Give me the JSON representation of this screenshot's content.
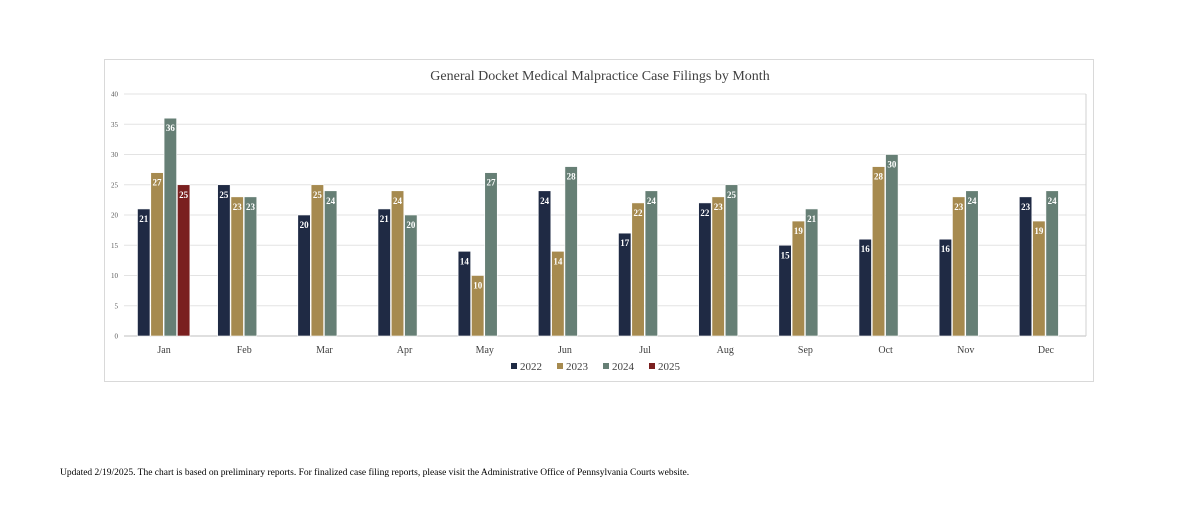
{
  "chart_data": {
    "type": "bar",
    "title": "General Docket Medical Malpractice Case Filings by Month",
    "xlabel": "",
    "ylabel": "",
    "ylim": [
      0,
      40
    ],
    "yticks": [
      0,
      5,
      10,
      15,
      20,
      25,
      30,
      35,
      40
    ],
    "grid": true,
    "legend_position": "bottom",
    "categories": [
      "Jan",
      "Feb",
      "Mar",
      "Apr",
      "May",
      "Jun",
      "Jul",
      "Aug",
      "Sep",
      "Oct",
      "Nov",
      "Dec"
    ],
    "series": [
      {
        "name": "2022",
        "color": "#1f2a44",
        "values": [
          21,
          25,
          20,
          21,
          14,
          24,
          17,
          22,
          15,
          16,
          16,
          23
        ]
      },
      {
        "name": "2023",
        "color": "#a68a4f",
        "values": [
          27,
          23,
          25,
          24,
          10,
          14,
          22,
          23,
          19,
          28,
          23,
          19
        ]
      },
      {
        "name": "2024",
        "color": "#667f75",
        "values": [
          36,
          23,
          24,
          20,
          27,
          28,
          24,
          25,
          21,
          30,
          24,
          24
        ]
      },
      {
        "name": "2025",
        "color": "#7a1f1f",
        "values": [
          25,
          null,
          null,
          null,
          null,
          null,
          null,
          null,
          null,
          null,
          null,
          null
        ]
      }
    ]
  },
  "footnote": "Updated 2/19/2025.  The chart is based on preliminary reports.  For finalized case filing reports, please visit the Administrative Office of Pennsylvania Courts website."
}
